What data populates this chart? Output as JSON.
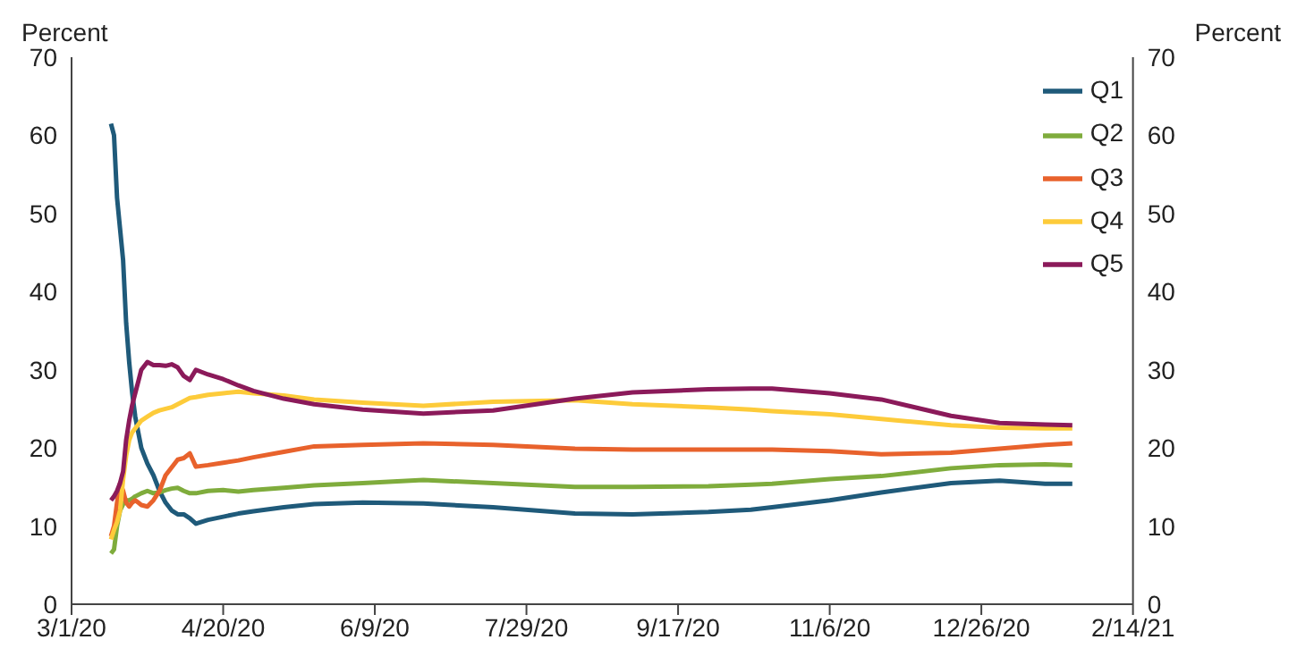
{
  "chart_data": {
    "type": "line",
    "ylabel": "Percent",
    "y2label": "Percent",
    "x": [
      "2020-03-14",
      "2020-03-15",
      "2020-03-16",
      "2020-03-17",
      "2020-03-18",
      "2020-03-19",
      "2020-03-20",
      "2020-03-21",
      "2020-03-22",
      "2020-03-23",
      "2020-03-24",
      "2020-03-26",
      "2020-03-28",
      "2020-03-30",
      "2020-04-01",
      "2020-04-03",
      "2020-04-05",
      "2020-04-07",
      "2020-04-09",
      "2020-04-11",
      "2020-04-15",
      "2020-04-20",
      "2020-04-25",
      "2020-04-30",
      "2020-05-10",
      "2020-05-20",
      "2020-06-05",
      "2020-06-25",
      "2020-07-18",
      "2020-08-14",
      "2020-09-02",
      "2020-09-27",
      "2020-10-11",
      "2020-10-18",
      "2020-11-06",
      "2020-11-23",
      "2020-12-16",
      "2021-01-01",
      "2021-01-16",
      "2021-01-25"
    ],
    "series": [
      {
        "name": "Q1",
        "color": "#1f5a7a",
        "values": [
          61.5,
          60,
          52,
          48,
          44,
          36,
          31,
          27,
          24,
          22,
          20,
          18,
          16.5,
          14.5,
          13,
          12,
          11.5,
          11.5,
          11,
          10.3,
          10.8,
          11.2,
          11.6,
          11.9,
          12.4,
          12.8,
          13,
          12.9,
          12.4,
          11.6,
          11.5,
          11.8,
          12.1,
          12.4,
          13.3,
          14.3,
          15.5,
          15.8,
          15.4,
          15.4
        ]
      },
      {
        "name": "Q2",
        "color": "#7fac3c",
        "values": [
          6.5,
          7,
          10,
          12,
          12.8,
          13.3,
          13.3,
          13.5,
          13.8,
          14,
          14.2,
          14.5,
          14.2,
          14.3,
          14.6,
          14.8,
          14.9,
          14.5,
          14.2,
          14.2,
          14.5,
          14.6,
          14.4,
          14.6,
          14.9,
          15.2,
          15.5,
          15.9,
          15.5,
          15,
          15,
          15.1,
          15.3,
          15.4,
          16,
          16.4,
          17.4,
          17.8,
          17.9,
          17.8
        ]
      },
      {
        "name": "Q3",
        "color": "#e8622c",
        "values": [
          8.7,
          10,
          13,
          15.5,
          14.5,
          13,
          12.5,
          13,
          13.3,
          13,
          12.7,
          12.5,
          13.3,
          14.5,
          16.5,
          17.5,
          18.5,
          18.7,
          19.3,
          17.6,
          17.8,
          18.1,
          18.4,
          18.8,
          19.5,
          20.2,
          20.4,
          20.6,
          20.4,
          19.9,
          19.8,
          19.8,
          19.8,
          19.8,
          19.6,
          19.2,
          19.4,
          19.9,
          20.4,
          20.6
        ]
      },
      {
        "name": "Q4",
        "color": "#fdcb3a",
        "values": [
          8.3,
          9.5,
          10.5,
          12,
          16,
          19,
          21,
          22,
          22.5,
          23,
          23.5,
          24,
          24.5,
          24.8,
          25,
          25.2,
          25.6,
          26,
          26.4,
          26.5,
          26.8,
          27,
          27.2,
          27,
          26.7,
          26.2,
          25.8,
          25.4,
          25.9,
          26.1,
          25.6,
          25.2,
          24.9,
          24.7,
          24.3,
          23.7,
          22.9,
          22.6,
          22.5,
          22.5
        ]
      },
      {
        "name": "Q5",
        "color": "#8b1a5a",
        "values": [
          13.3,
          13.8,
          14.5,
          15.5,
          17,
          21,
          23.5,
          25.5,
          27,
          28.5,
          30,
          31,
          30.6,
          30.6,
          30.5,
          30.7,
          30.3,
          29.2,
          28.7,
          30,
          29.4,
          28.8,
          28,
          27.3,
          26.3,
          25.6,
          24.9,
          24.4,
          24.8,
          26.3,
          27.1,
          27.5,
          27.6,
          27.6,
          27,
          26.2,
          24.1,
          23.2,
          23,
          22.9
        ]
      }
    ],
    "xlim": [
      "2020-03-01",
      "2021-02-14"
    ],
    "xticks": [
      {
        "value": "2020-03-01",
        "label": "3/1/20"
      },
      {
        "value": "2020-04-20",
        "label": "4/20/20"
      },
      {
        "value": "2020-06-09",
        "label": "6/9/20"
      },
      {
        "value": "2020-07-29",
        "label": "7/29/20"
      },
      {
        "value": "2020-09-17",
        "label": "9/17/20"
      },
      {
        "value": "2020-11-06",
        "label": "11/6/20"
      },
      {
        "value": "2020-12-26",
        "label": "12/26/20"
      },
      {
        "value": "2021-02-14",
        "label": "2/14/21"
      }
    ],
    "ylim": [
      0,
      70
    ],
    "yticks": [
      0,
      10,
      20,
      30,
      40,
      50,
      60,
      70
    ],
    "y2lim": [
      0,
      70
    ],
    "y2ticks": [
      0,
      10,
      20,
      30,
      40,
      50,
      60,
      70
    ],
    "grid": false,
    "legend": "top right",
    "marker": "none",
    "line_style": "solid"
  }
}
